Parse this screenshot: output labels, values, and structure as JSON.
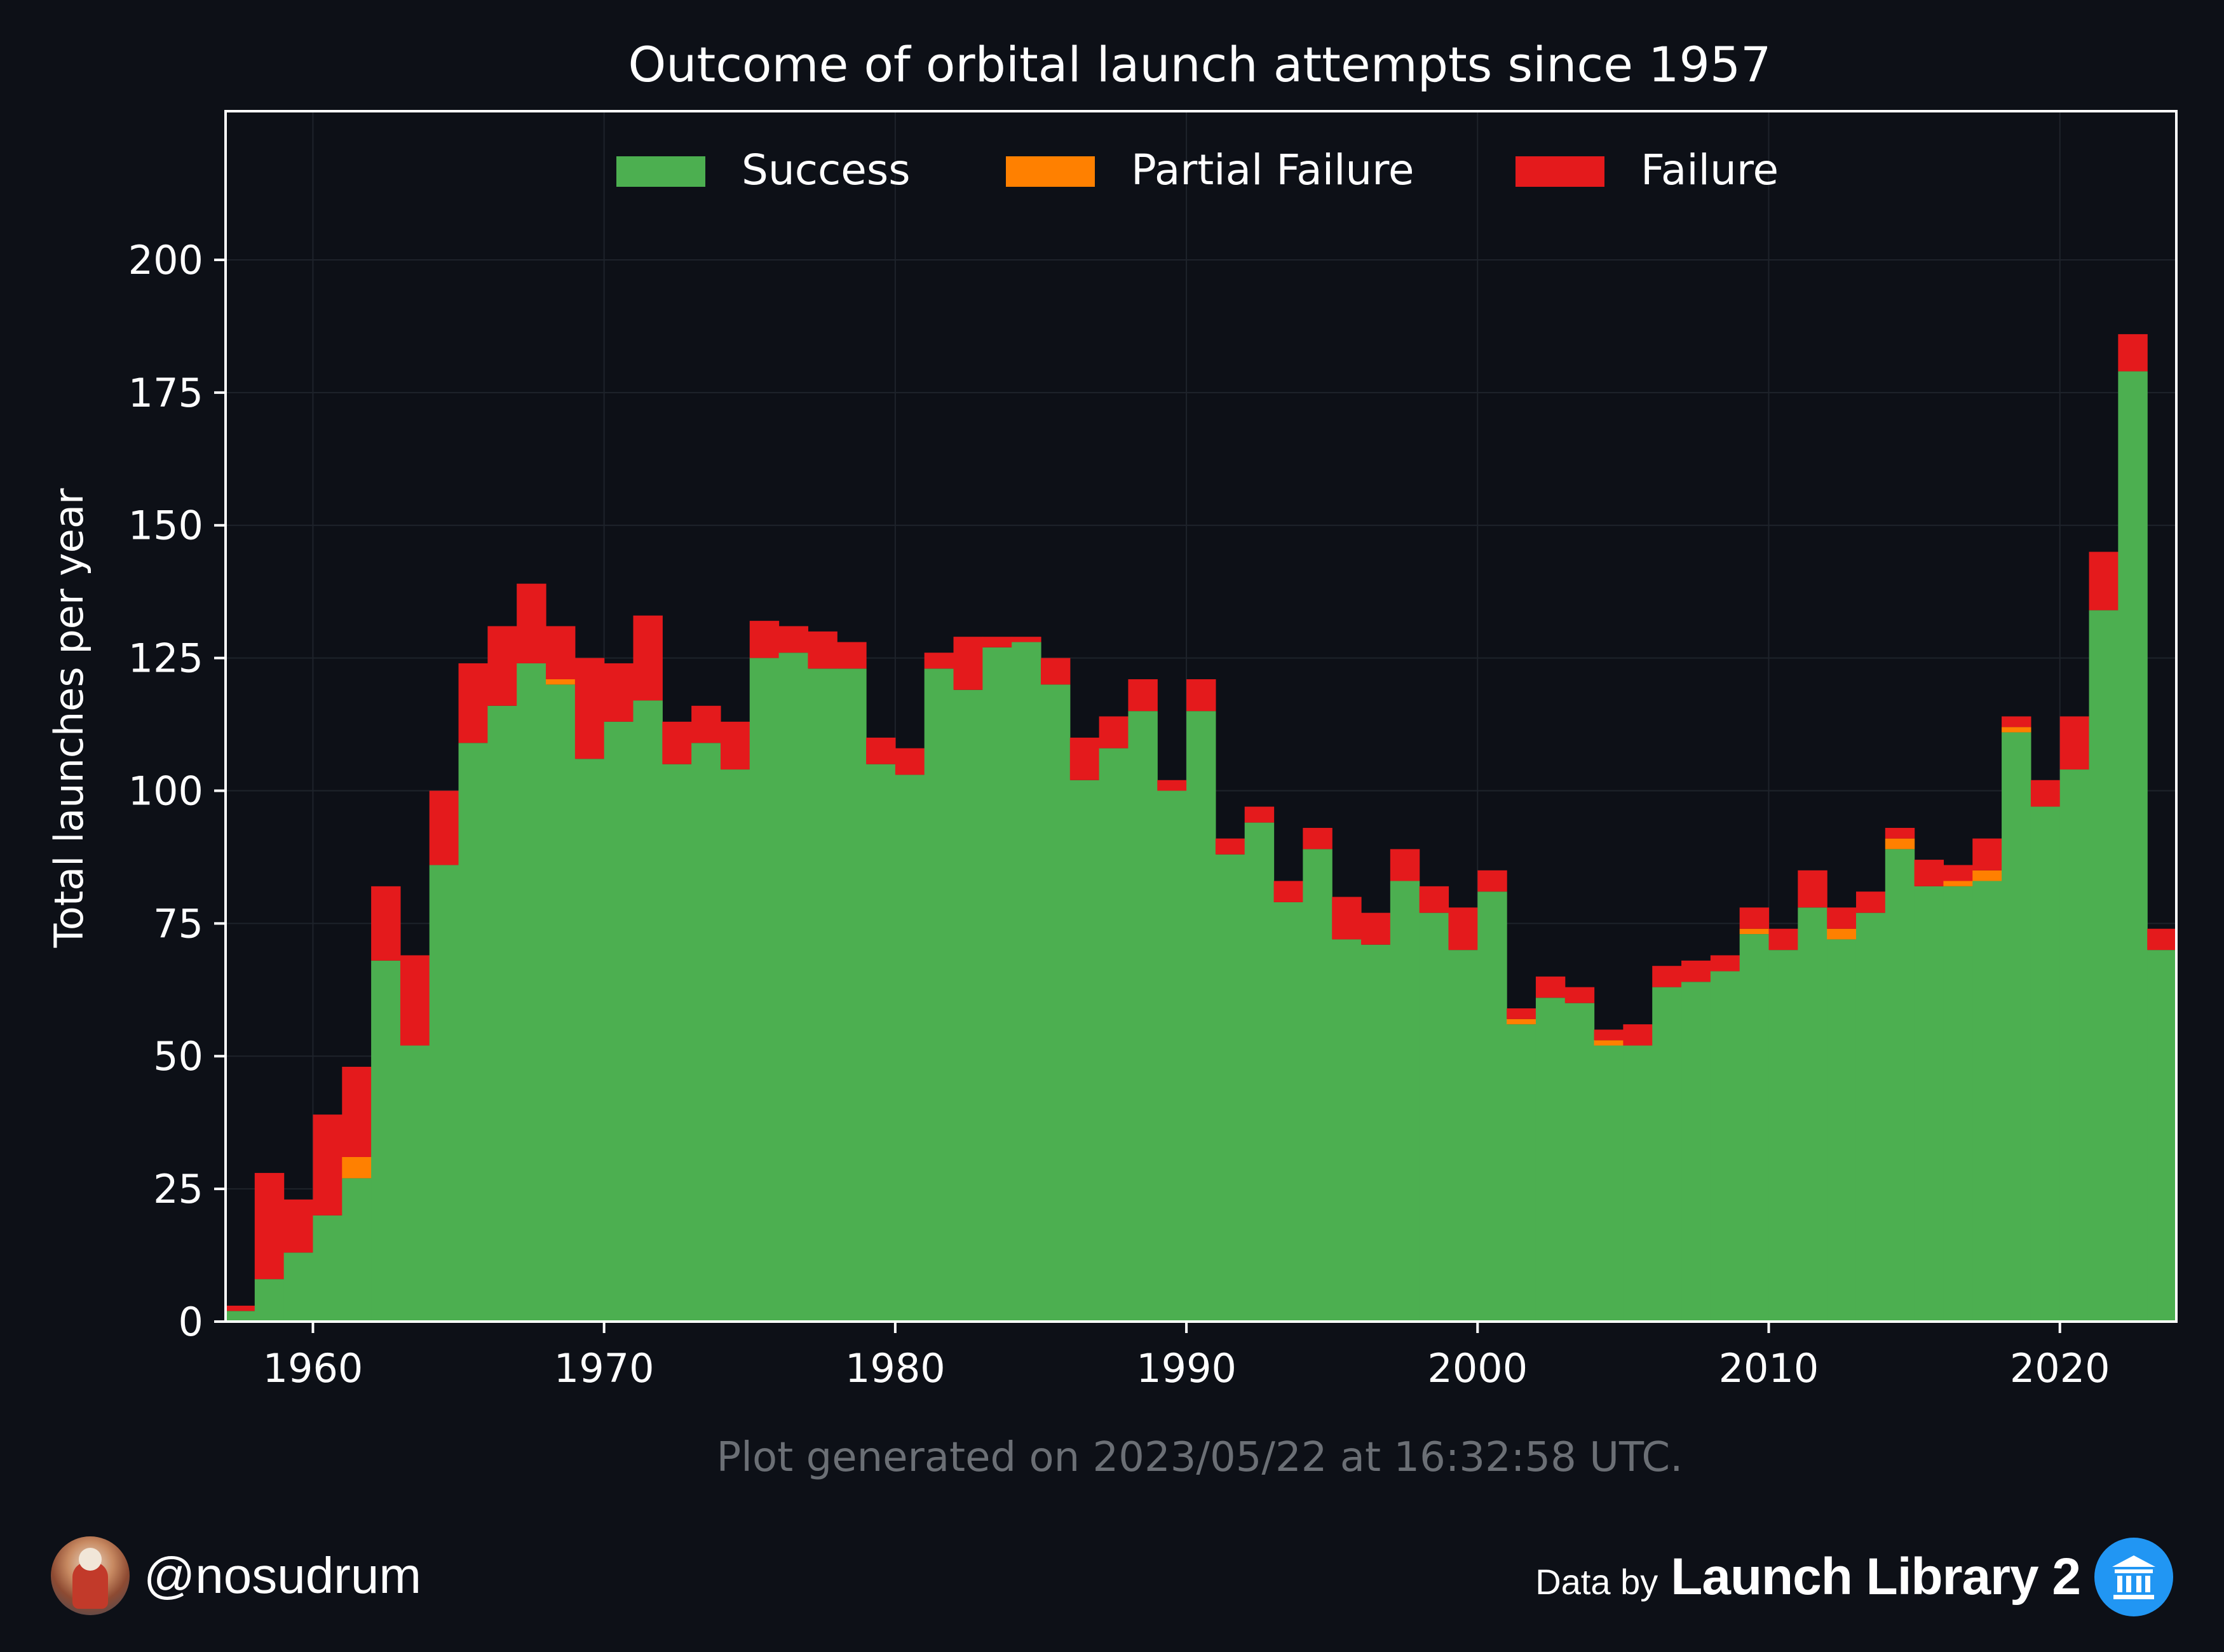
{
  "colors": {
    "background": "#0d1017",
    "success": "#4caf50",
    "partial_failure": "#ff8000",
    "failure": "#e41a1c",
    "axis": "#ffffff",
    "footnote": "#6b6f75",
    "grid": "#1e232b"
  },
  "footer": {
    "generated_note": "Plot generated on 2023/05/22 at 16:32:58 UTC.",
    "author_handle": "@nosudrum",
    "data_by_label": "Data by",
    "data_source": "Launch Library 2",
    "author_avatar_icon": "astronaut-avatar-icon",
    "source_logo_icon": "launch-library-logo-icon"
  },
  "chart_data": {
    "type": "bar",
    "stacked": true,
    "title": "Outcome of orbital launch attempts since 1957",
    "xlabel": "",
    "ylabel": "Total launches per year",
    "xlim": [
      1957,
      2024
    ],
    "ylim": [
      0,
      228
    ],
    "x_ticks": [
      "1960",
      "1970",
      "1980",
      "1990",
      "2000",
      "2010",
      "2020"
    ],
    "y_ticks": [
      "0",
      "25",
      "50",
      "75",
      "100",
      "125",
      "150",
      "175",
      "200"
    ],
    "grid": true,
    "legend_position": "top-center",
    "legend": [
      "Success",
      "Partial Failure",
      "Failure"
    ],
    "years": [
      1957,
      1958,
      1959,
      1960,
      1961,
      1962,
      1963,
      1964,
      1965,
      1966,
      1967,
      1968,
      1969,
      1970,
      1971,
      1972,
      1973,
      1974,
      1975,
      1976,
      1977,
      1978,
      1979,
      1980,
      1981,
      1982,
      1983,
      1984,
      1985,
      1986,
      1987,
      1988,
      1989,
      1990,
      1991,
      1992,
      1993,
      1994,
      1995,
      1996,
      1997,
      1998,
      1999,
      2000,
      2001,
      2002,
      2003,
      2004,
      2005,
      2006,
      2007,
      2008,
      2009,
      2010,
      2011,
      2012,
      2013,
      2014,
      2015,
      2016,
      2017,
      2018,
      2019,
      2020,
      2021,
      2022,
      2023
    ],
    "series": [
      {
        "name": "Success",
        "values": [
          2,
          8,
          13,
          20,
          27,
          68,
          52,
          86,
          109,
          116,
          124,
          120,
          106,
          113,
          117,
          105,
          109,
          104,
          125,
          126,
          123,
          123,
          105,
          103,
          123,
          119,
          127,
          128,
          120,
          102,
          108,
          115,
          100,
          115,
          88,
          94,
          79,
          89,
          72,
          71,
          83,
          77,
          70,
          81,
          56,
          61,
          60,
          52,
          52,
          63,
          64,
          66,
          73,
          70,
          78,
          72,
          77,
          89,
          82,
          82,
          83,
          111,
          97,
          104,
          134,
          179,
          70
        ]
      },
      {
        "name": "Partial Failure",
        "values": [
          0,
          0,
          0,
          0,
          4,
          0,
          0,
          0,
          0,
          0,
          0,
          1,
          0,
          0,
          0,
          0,
          0,
          0,
          0,
          0,
          0,
          0,
          0,
          0,
          0,
          0,
          0,
          0,
          0,
          0,
          0,
          0,
          0,
          0,
          0,
          0,
          0,
          0,
          0,
          0,
          0,
          0,
          0,
          0,
          1,
          0,
          0,
          1,
          0,
          0,
          0,
          0,
          1,
          0,
          0,
          2,
          0,
          2,
          0,
          1,
          2,
          1,
          0,
          0,
          0,
          0,
          0
        ]
      },
      {
        "name": "Failure",
        "values": [
          1,
          20,
          10,
          19,
          17,
          14,
          17,
          14,
          15,
          15,
          15,
          10,
          19,
          11,
          16,
          8,
          7,
          9,
          7,
          5,
          7,
          5,
          5,
          5,
          3,
          10,
          2,
          1,
          5,
          8,
          6,
          6,
          2,
          6,
          3,
          3,
          4,
          4,
          8,
          6,
          6,
          5,
          8,
          4,
          2,
          4,
          3,
          2,
          4,
          4,
          4,
          3,
          4,
          4,
          7,
          4,
          4,
          2,
          5,
          3,
          6,
          2,
          5,
          10,
          11,
          7,
          4
        ]
      }
    ]
  }
}
